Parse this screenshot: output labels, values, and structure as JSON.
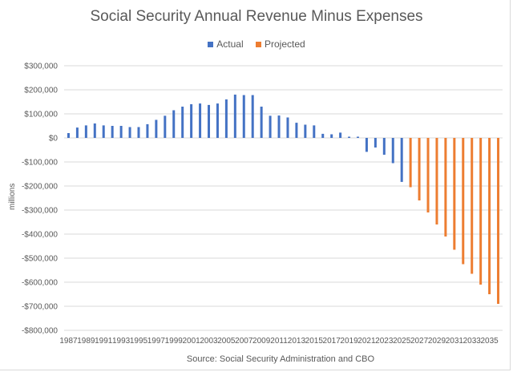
{
  "chart_data": {
    "type": "bar",
    "title": "Social Security Annual Revenue Minus Expenses",
    "xlabel": "",
    "ylabel": "millions",
    "source": "Source: Social Security Administration and CBO",
    "ylim": [
      -800000,
      300000
    ],
    "yticks": [
      300000,
      200000,
      100000,
      0,
      -100000,
      -200000,
      -300000,
      -400000,
      -500000,
      -600000,
      -700000,
      -800000
    ],
    "ytick_labels": [
      "$300,000",
      "$200,000",
      "$100,000",
      "$0",
      "-$100,000",
      "-$200,000",
      "-$300,000",
      "-$400,000",
      "-$500,000",
      "-$600,000",
      "-$700,000",
      "-$800,000"
    ],
    "grid": true,
    "legend_position": "top-center",
    "series": [
      {
        "name": "Actual",
        "color": "#4472c4",
        "x": [
          1987,
          1988,
          1989,
          1990,
          1991,
          1992,
          1993,
          1994,
          1995,
          1996,
          1997,
          1998,
          1999,
          2000,
          2001,
          2002,
          2003,
          2004,
          2005,
          2006,
          2007,
          2008,
          2009,
          2010,
          2011,
          2012,
          2013,
          2014,
          2015,
          2016,
          2017,
          2018,
          2019,
          2020,
          2021,
          2022,
          2023,
          2024,
          2025
        ],
        "values": [
          20000,
          43000,
          52000,
          60000,
          52000,
          50000,
          50000,
          45000,
          45000,
          57000,
          75000,
          92000,
          115000,
          130000,
          140000,
          143000,
          137000,
          143000,
          160000,
          180000,
          178000,
          178000,
          130000,
          92000,
          93000,
          85000,
          63000,
          55000,
          52000,
          17000,
          15000,
          22000,
          5000,
          5000,
          -58000,
          -40000,
          -70000,
          -105000,
          -183000
        ]
      },
      {
        "name": "Projected",
        "color": "#ed7d31",
        "x": [
          2026,
          2027,
          2028,
          2029,
          2030,
          2031,
          2032,
          2033,
          2034,
          2035,
          2036
        ],
        "values": [
          -205000,
          -260000,
          -310000,
          -360000,
          -410000,
          -465000,
          -525000,
          -565000,
          -610000,
          -650000,
          -690000
        ]
      }
    ],
    "xtick_labels": [
      "1987",
      "1989",
      "1991",
      "1993",
      "1995",
      "1997",
      "1999",
      "2001",
      "2003",
      "2005",
      "2007",
      "2009",
      "2011",
      "2013",
      "2015",
      "2017",
      "2019",
      "2021",
      "2023",
      "2025",
      "2027",
      "2029",
      "2031",
      "2033",
      "2035"
    ]
  }
}
